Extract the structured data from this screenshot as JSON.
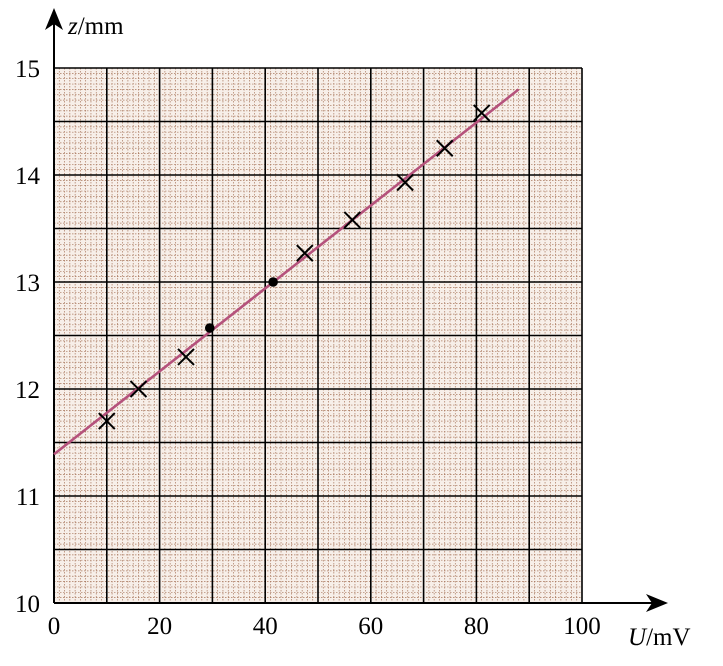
{
  "chart_data": {
    "type": "scatter",
    "xlabel": {
      "var": "U",
      "unit": "/mV"
    },
    "ylabel": {
      "var": "z",
      "unit": "/mm"
    },
    "xlim": [
      0,
      100
    ],
    "ylim": [
      10,
      15
    ],
    "x_ticks": [
      "0",
      "20",
      "40",
      "60",
      "80",
      "100"
    ],
    "y_ticks": [
      "10",
      "11",
      "12",
      "13",
      "14",
      "15"
    ],
    "grid": true,
    "colors": {
      "grid_major": "#000000",
      "grid_minor": "#a9785e",
      "background": "#f7efe9",
      "fit_line": "#b5527c",
      "markers": "#000000"
    },
    "series": [
      {
        "marker": "cross",
        "points": [
          {
            "x": 10,
            "y": 11.7
          },
          {
            "x": 16,
            "y": 12.0
          },
          {
            "x": 25,
            "y": 12.3
          },
          {
            "x": 47.5,
            "y": 13.27
          },
          {
            "x": 56.5,
            "y": 13.58
          },
          {
            "x": 66.5,
            "y": 13.93
          },
          {
            "x": 74,
            "y": 14.25
          },
          {
            "x": 81,
            "y": 14.58
          }
        ]
      },
      {
        "marker": "dot",
        "points": [
          {
            "x": 29.5,
            "y": 12.57
          },
          {
            "x": 41.5,
            "y": 13.0
          }
        ]
      }
    ],
    "fit_line": {
      "x_start": 0,
      "y_start": 11.39,
      "x_end": 88,
      "y_end": 14.8
    }
  }
}
